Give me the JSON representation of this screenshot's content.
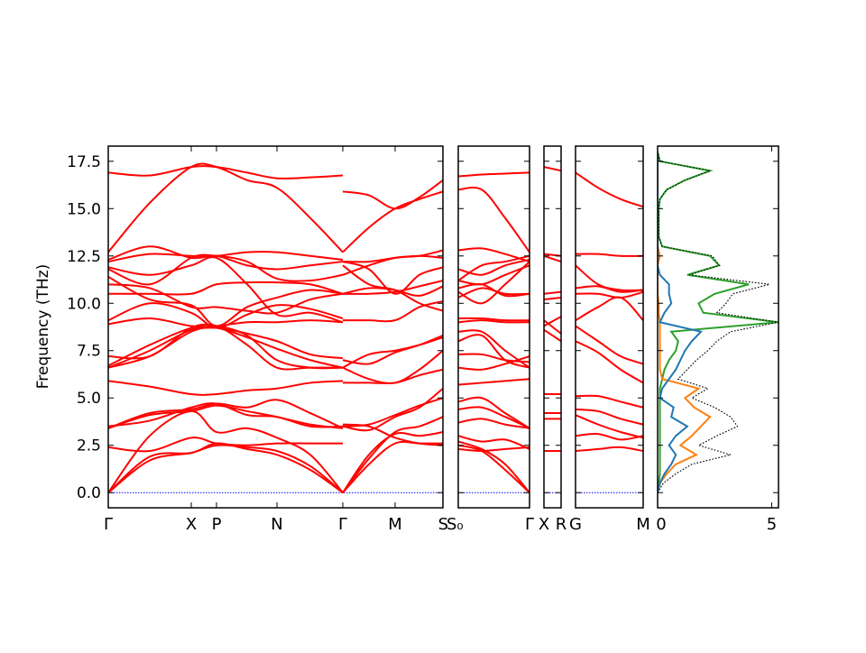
{
  "chart_data": {
    "type": "line",
    "ylabel": "Frequency (THz)",
    "ylim": [
      -0.8,
      18.3
    ],
    "yticks": [
      "0.0",
      "2.5",
      "5.0",
      "7.5",
      "10.0",
      "12.5",
      "15.0",
      "17.5"
    ],
    "ytick_values": [
      0,
      2.5,
      5,
      7.5,
      10,
      12.5,
      15,
      17.5
    ],
    "band_color": "#ff0000",
    "zero_line_color": "#0000ff",
    "band_panels": [
      {
        "klim": [
          0,
          371
        ],
        "kpoints": [
          {
            "label": "Γ",
            "k": 0
          },
          {
            "label": "X",
            "k": 92
          },
          {
            "label": "P",
            "k": 120
          },
          {
            "label": "N",
            "k": 187
          },
          {
            "label": "Γ",
            "k": 260
          },
          {
            "label": "M",
            "k": 318
          },
          {
            "label": "S",
            "k": 371
          }
        ],
        "segments": [
          {
            "k": [
              0,
              46,
              92,
              120,
              154,
              187,
              224,
              260
            ],
            "bands": [
              [
                16.9,
                16.75,
                17.2,
                17.2,
                16.9,
                16.6,
                16.65,
                16.75
              ],
              [
                12.7,
                15.3,
                17.2,
                17.2,
                16.5,
                16.1,
                14.5,
                12.7
              ],
              [
                0,
                1.7,
                2.1,
                2.5,
                2.4,
                2.2,
                1.4,
                0
              ],
              [
                0,
                1.9,
                2.1,
                2.6,
                2.3,
                2.0,
                1.2,
                0
              ],
              [
                0,
                3.0,
                4.3,
                3.2,
                3.4,
                2.9,
                2.0,
                0
              ],
              [
                2.4,
                2.2,
                2.9,
                2.6,
                2.5,
                2.6,
                2.6,
                2.6
              ],
              [
                3.4,
                4.1,
                4.3,
                4.6,
                4.3,
                4.0,
                3.6,
                3.4
              ],
              [
                3.4,
                4.2,
                4.4,
                4.7,
                4.5,
                4.9,
                4.2,
                3.4
              ],
              [
                3.5,
                3.8,
                4.5,
                4.7,
                4.1,
                4.0,
                3.5,
                3.5
              ],
              [
                5.9,
                5.6,
                5.2,
                5.2,
                5.4,
                5.5,
                5.8,
                5.9
              ],
              [
                6.6,
                7.5,
                8.6,
                8.7,
                8.2,
                7.6,
                7.0,
                6.6
              ],
              [
                6.6,
                7.2,
                8.5,
                8.7,
                8.4,
                8.0,
                7.3,
                7.1
              ],
              [
                7.2,
                7.2,
                8.7,
                8.8,
                8.3,
                7.0,
                6.6,
                6.6
              ],
              [
                6.7,
                7.8,
                8.7,
                8.8,
                7.8,
                6.6,
                6.6,
                6.6
              ],
              [
                8.9,
                9.2,
                8.8,
                8.8,
                9.0,
                9.0,
                9.1,
                9.0
              ],
              [
                9.1,
                10.0,
                9.5,
                8.7,
                9.4,
                9.9,
                9.7,
                9.2
              ],
              [
                10.5,
                10.5,
                10.5,
                11.0,
                11.1,
                11.1,
                11.0,
                10.5
              ],
              [
                11.4,
                10.2,
                9.9,
                8.8,
                9.8,
                10.3,
                10.7,
                10.5
              ],
              [
                11.8,
                11.0,
                12.4,
                12.5,
                12.2,
                11.3,
                11.2,
                11.5
              ],
              [
                12.2,
                12.6,
                12.5,
                12.5,
                12.7,
                12.7,
                12.5,
                12.3
              ],
              [
                12.3,
                13.0,
                12.4,
                12.5,
                12.0,
                11.8,
                12.0,
                12.2
              ],
              [
                11.9,
                11.5,
                12.0,
                12.4,
                11.0,
                9.4,
                9.5,
                9.0
              ],
              [
                11.0,
                10.8,
                9.8,
                9.8,
                9.6,
                9.5,
                10.2,
                10.5
              ]
            ]
          },
          {
            "k": [
              260,
              289,
              318,
              345,
              371
            ],
            "bands": [
              [
                15.9,
                15.7,
                15.0,
                15.6,
                16.5
              ],
              [
                12.7,
                14.0,
                15.0,
                15.5,
                15.9
              ],
              [
                0,
                1.8,
                3.2,
                3.5,
                4.0
              ],
              [
                0,
                1.5,
                2.6,
                2.6,
                2.6
              ],
              [
                0,
                2.0,
                3.1,
                3.0,
                3.2
              ],
              [
                3.6,
                3.5,
                2.9,
                2.6,
                2.5
              ],
              [
                3.5,
                3.3,
                4.0,
                4.5,
                5.5
              ],
              [
                3.5,
                3.6,
                4.1,
                4.6,
                5.0
              ],
              [
                5.8,
                5.8,
                5.8,
                6.2,
                6.5
              ],
              [
                6.6,
                6.0,
                5.8,
                6.5,
                7.5
              ],
              [
                6.6,
                7.3,
                7.5,
                7.8,
                8.2
              ],
              [
                7.0,
                6.8,
                7.4,
                7.8,
                8.3
              ],
              [
                9.1,
                9.1,
                9.1,
                9.8,
                10.1
              ],
              [
                10.5,
                10.5,
                10.6,
                10.9,
                11.2
              ],
              [
                10.5,
                10.8,
                10.7,
                10.4,
                10.9
              ],
              [
                11.5,
                12.0,
                12.4,
                12.5,
                12.8
              ],
              [
                12.2,
                11.8,
                10.5,
                11.5,
                11.9
              ],
              [
                12.0,
                11.0,
                10.7,
                10.0,
                9.6
              ],
              [
                12.2,
                12.2,
                12.4,
                12.5,
                12.4
              ]
            ]
          }
        ]
      },
      {
        "klim": [
          0,
          79
        ],
        "kpoints": [
          {
            "label": "S₀",
            "k": 0
          },
          {
            "label": "Γ",
            "k": 79
          }
        ],
        "segments": [
          {
            "k": [
              0,
              26,
              52,
              79
            ],
            "bands": [
              [
                16.7,
                16.8,
                16.85,
                16.9
              ],
              [
                16.0,
                16.0,
                14.5,
                12.7
              ],
              [
                12.8,
                12.9,
                12.6,
                12.2
              ],
              [
                11.8,
                11.5,
                12.0,
                12.3
              ],
              [
                11.2,
                12.0,
                12.2,
                12.5
              ],
              [
                11.2,
                11.0,
                11.5,
                12.0
              ],
              [
                10.8,
                11.0,
                10.4,
                10.5
              ],
              [
                10.3,
                10.8,
                10.5,
                10.5
              ],
              [
                10.6,
                10.0,
                11.0,
                12.2
              ],
              [
                9.2,
                9.2,
                9.1,
                9.1
              ],
              [
                9.0,
                9.1,
                9.0,
                9.0
              ],
              [
                8.5,
                8.5,
                7.5,
                6.6
              ],
              [
                8.0,
                8.3,
                7.0,
                6.6
              ],
              [
                7.3,
                7.3,
                7.0,
                6.9
              ],
              [
                6.6,
                6.5,
                6.8,
                7.2
              ],
              [
                5.7,
                5.8,
                5.9,
                6.0
              ],
              [
                4.8,
                5.0,
                4.2,
                3.4
              ],
              [
                4.4,
                4.5,
                4.0,
                3.4
              ],
              [
                3.7,
                3.9,
                3.6,
                3.4
              ],
              [
                3.0,
                2.7,
                2.8,
                2.3
              ],
              [
                2.7,
                2.3,
                1.5,
                0
              ],
              [
                2.5,
                2.2,
                1.2,
                0
              ],
              [
                2.3,
                2.2,
                2.3,
                2.4
              ]
            ]
          }
        ]
      },
      {
        "klim": [
          0,
          19
        ],
        "kpoints": [
          {
            "label": "X",
            "k": 0
          },
          {
            "label": "R",
            "k": 19
          }
        ],
        "segments": [
          {
            "k": [
              0,
              19
            ],
            "bands": [
              [
                17.2,
                17.0
              ],
              [
                12.6,
                12.5
              ],
              [
                12.5,
                12.2
              ],
              [
                10.5,
                10.6
              ],
              [
                10.2,
                10.3
              ],
              [
                8.8,
                9.3
              ],
              [
                8.6,
                8.0
              ],
              [
                9.1,
                8.4
              ],
              [
                5.2,
                5.2
              ],
              [
                4.2,
                4.2
              ],
              [
                3.9,
                3.9
              ],
              [
                2.2,
                2.2
              ]
            ]
          }
        ]
      },
      {
        "klim": [
          0,
          75
        ],
        "kpoints": [
          {
            "label": "G",
            "k": 0
          },
          {
            "label": "M",
            "k": 75
          }
        ],
        "segments": [
          {
            "k": [
              0,
              25,
              50,
              75
            ],
            "bands": [
              [
                16.9,
                16.1,
                15.5,
                15.1
              ],
              [
                12.6,
                12.6,
                12.5,
                12.5
              ],
              [
                12.0,
                11.0,
                10.7,
                10.7
              ],
              [
                10.8,
                10.9,
                10.6,
                10.7
              ],
              [
                10.5,
                10.5,
                10.3,
                10.6
              ],
              [
                9.1,
                9.8,
                10.3,
                9.1
              ],
              [
                8.8,
                8.0,
                7.2,
                6.8
              ],
              [
                8.0,
                7.4,
                6.5,
                5.8
              ],
              [
                5.1,
                5.1,
                4.8,
                4.5
              ],
              [
                4.4,
                4.3,
                3.9,
                3.6
              ],
              [
                4.1,
                3.6,
                3.2,
                2.9
              ],
              [
                3.0,
                3.1,
                2.8,
                3.0
              ],
              [
                2.2,
                2.3,
                2.4,
                2.2
              ]
            ]
          }
        ]
      }
    ],
    "dos": {
      "xlim": [
        0,
        5.3
      ],
      "xticks": [
        "0",
        "5"
      ],
      "xtick_values": [
        0,
        5
      ],
      "frequency": [
        0,
        0.5,
        1,
        1.5,
        2,
        2.5,
        3,
        3.5,
        4,
        4.5,
        5,
        5.5,
        6,
        6.5,
        7,
        7.5,
        8,
        8.5,
        9,
        9.5,
        10,
        10.5,
        11,
        11.5,
        12,
        12.5,
        13,
        13.5,
        14,
        14.5,
        15,
        15.5,
        16,
        16.5,
        17,
        17.5,
        18
      ],
      "series": [
        {
          "color": "#1f77b4",
          "values": [
            0,
            0.1,
            0.3,
            0.6,
            0.8,
            0.5,
            0.8,
            1.3,
            0.6,
            0.7,
            0.1,
            0.2,
            0.5,
            0.8,
            1.0,
            1.2,
            1.5,
            1.9,
            0.1,
            0.3,
            0.6,
            0.5,
            0.5,
            0.1,
            0,
            0,
            0,
            0,
            0,
            0,
            0,
            0,
            0,
            0,
            0,
            0,
            0
          ]
        },
        {
          "color": "#ff7f0e",
          "values": [
            0,
            0.1,
            0.4,
            0.8,
            1.7,
            1.0,
            1.5,
            1.9,
            2.3,
            1.6,
            1.2,
            1.8,
            0.2,
            0.1,
            0.1,
            0.1,
            0.1,
            0.1,
            0.1,
            0.05,
            0.05,
            0,
            0,
            0,
            0,
            0.1,
            0,
            0,
            0,
            0,
            0,
            0,
            0,
            0,
            0,
            0,
            0
          ]
        },
        {
          "color": "#2ca02c",
          "values": [
            0,
            0.05,
            0.1,
            0.1,
            0.1,
            0.1,
            0.1,
            0.1,
            0.1,
            0.1,
            0.1,
            0.1,
            0.2,
            0.3,
            0.5,
            0.8,
            0.9,
            0.6,
            5.3,
            2.0,
            1.8,
            2.5,
            4.0,
            1.3,
            2.7,
            2.3,
            0.2,
            0.05,
            0.05,
            0.05,
            0.05,
            0.1,
            0.4,
            1.2,
            2.3,
            0.1,
            0
          ]
        },
        {
          "color": "#000000",
          "style": "dotted",
          "values": [
            0,
            0.25,
            0.8,
            1.5,
            3.2,
            1.8,
            2.6,
            3.5,
            3.2,
            2.5,
            1.5,
            2.2,
            0.9,
            1.3,
            1.7,
            2.2,
            2.6,
            3.2,
            5.3,
            2.6,
            3.0,
            3.3,
            4.9,
            1.4,
            2.7,
            2.4,
            0.2,
            0.05,
            0.05,
            0.05,
            0.05,
            0.1,
            0.4,
            1.2,
            2.3,
            0.1,
            0
          ]
        }
      ]
    }
  }
}
